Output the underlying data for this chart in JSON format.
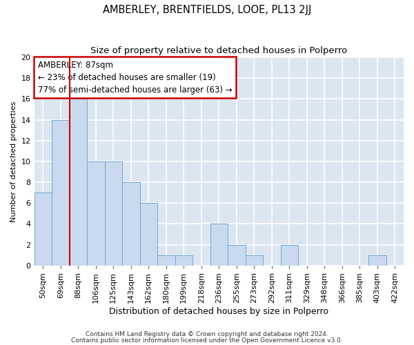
{
  "title": "AMBERLEY, BRENTFIELDS, LOOE, PL13 2JJ",
  "subtitle": "Size of property relative to detached houses in Polperro",
  "xlabel": "Distribution of detached houses by size in Polperro",
  "ylabel": "Number of detached properties",
  "categories": [
    "50sqm",
    "69sqm",
    "88sqm",
    "106sqm",
    "125sqm",
    "143sqm",
    "162sqm",
    "180sqm",
    "199sqm",
    "218sqm",
    "236sqm",
    "255sqm",
    "273sqm",
    "292sqm",
    "311sqm",
    "329sqm",
    "348sqm",
    "366sqm",
    "385sqm",
    "403sqm",
    "422sqm"
  ],
  "values": [
    7,
    14,
    16,
    10,
    10,
    8,
    6,
    1,
    1,
    0,
    4,
    2,
    1,
    0,
    2,
    0,
    0,
    0,
    0,
    1,
    0
  ],
  "bar_color": "#c9d9ee",
  "bar_edge_color": "#6fa8d6",
  "background_color": "#dce6f1",
  "grid_color": "#ffffff",
  "annotation_line1": "AMBERLEY: 87sqm",
  "annotation_line2": "← 23% of detached houses are smaller (19)",
  "annotation_line3": "77% of semi-detached houses are larger (63) →",
  "annotation_box_color": "#ffffff",
  "annotation_box_edge_color": "#cc0000",
  "vline_x_index": 2,
  "vline_color": "#cc0000",
  "ylim": [
    0,
    20
  ],
  "yticks": [
    0,
    2,
    4,
    6,
    8,
    10,
    12,
    14,
    16,
    18,
    20
  ],
  "footer_line1": "Contains HM Land Registry data © Crown copyright and database right 2024.",
  "footer_line2": "Contains public sector information licensed under the Open Government Licence v3.0.",
  "title_fontsize": 10.5,
  "subtitle_fontsize": 9.5,
  "xlabel_fontsize": 9,
  "ylabel_fontsize": 8,
  "tick_fontsize": 8,
  "footer_fontsize": 6.5,
  "annotation_fontsize": 8.5
}
